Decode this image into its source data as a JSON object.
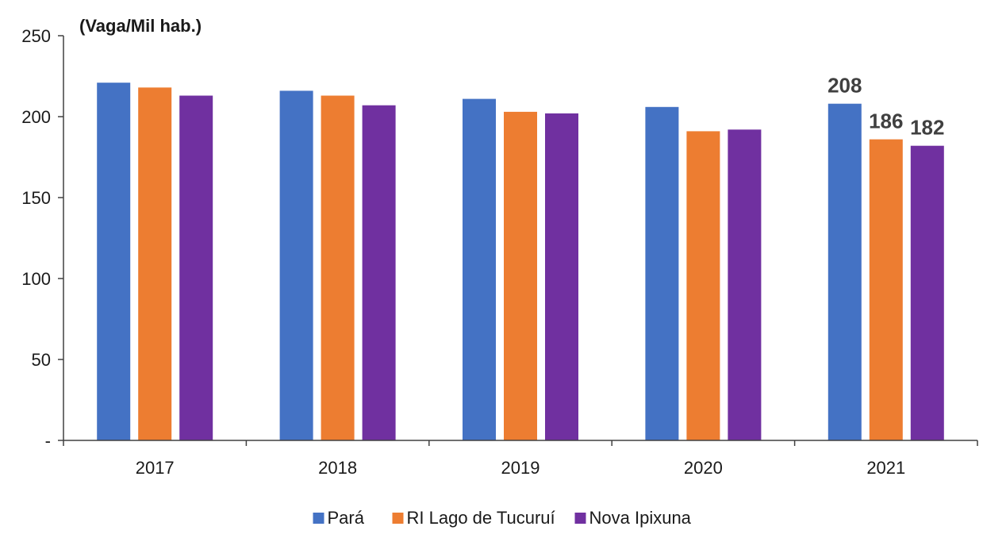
{
  "chart_data": {
    "type": "bar",
    "unit_label": "(Vaga/Mil hab.)",
    "categories": [
      "2017",
      "2018",
      "2019",
      "2020",
      "2021"
    ],
    "series": [
      {
        "name": "Pará",
        "color": "#4472C4",
        "values": [
          221,
          216,
          211,
          206,
          208
        ],
        "labels": [
          null,
          null,
          null,
          null,
          "208"
        ]
      },
      {
        "name": "RI Lago de Tucuruí",
        "color": "#ED7D31",
        "values": [
          218,
          213,
          203,
          191,
          186
        ],
        "labels": [
          null,
          null,
          null,
          null,
          "186"
        ]
      },
      {
        "name": "Nova Ipixuna",
        "color": "#7030A0",
        "values": [
          213,
          207,
          202,
          192,
          182
        ],
        "labels": [
          null,
          null,
          null,
          null,
          "182"
        ]
      }
    ],
    "y_ticks": [
      {
        "value": 0,
        "label": "-"
      },
      {
        "value": 50,
        "label": "50"
      },
      {
        "value": 100,
        "label": "100"
      },
      {
        "value": 150,
        "label": "150"
      },
      {
        "value": 200,
        "label": "200"
      },
      {
        "value": 250,
        "label": "250"
      }
    ],
    "ylim": [
      0,
      250
    ],
    "legend_position": "bottom",
    "grid": false
  }
}
